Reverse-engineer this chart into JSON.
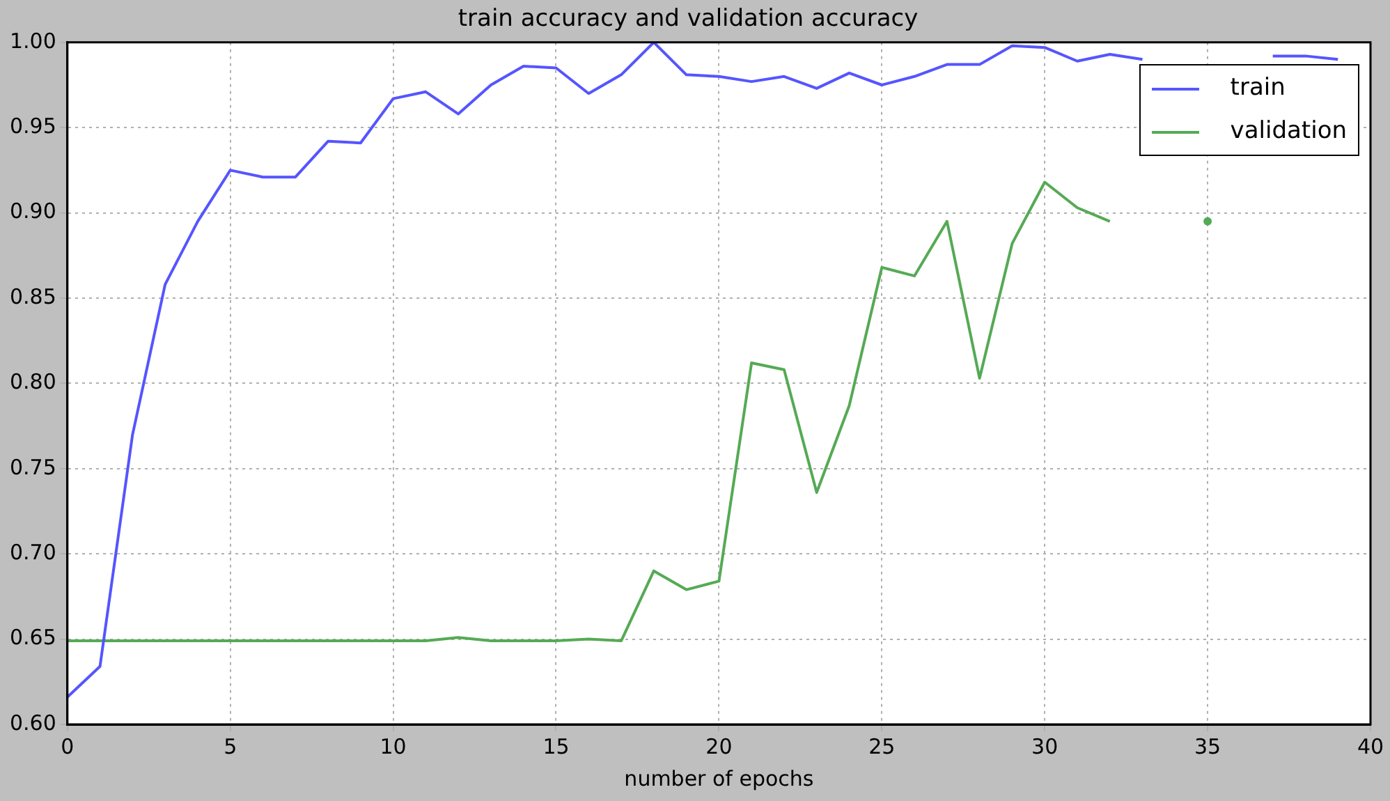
{
  "chart_data": {
    "type": "line",
    "title": "train accuracy and validation accuracy",
    "xlabel": "number of epochs",
    "x": [
      0,
      1,
      2,
      3,
      4,
      5,
      6,
      7,
      8,
      9,
      10,
      11,
      12,
      13,
      14,
      15,
      16,
      17,
      18,
      19,
      20,
      21,
      22,
      23,
      24,
      25,
      26,
      27,
      28,
      29,
      30,
      31,
      32,
      33,
      34,
      35,
      36,
      37,
      38,
      39
    ],
    "series": [
      {
        "name": "train",
        "color": "#5555ff",
        "values": [
          0.616,
          0.634,
          0.77,
          0.858,
          0.895,
          0.925,
          0.921,
          0.921,
          0.942,
          0.941,
          0.967,
          0.971,
          0.958,
          0.975,
          0.986,
          0.985,
          0.97,
          0.981,
          1.0,
          0.981,
          0.98,
          0.977,
          0.98,
          0.973,
          0.982,
          0.975,
          0.98,
          0.987,
          0.987,
          0.998,
          0.997,
          0.989,
          0.993,
          0.99,
          null,
          null,
          null,
          0.992,
          0.992,
          0.99
        ]
      },
      {
        "name": "validation",
        "color": "#55aa55",
        "values": [
          0.649,
          0.649,
          0.649,
          0.649,
          0.649,
          0.649,
          0.649,
          0.649,
          0.649,
          0.649,
          0.649,
          0.649,
          0.651,
          0.649,
          0.649,
          0.649,
          0.65,
          0.649,
          0.69,
          0.679,
          0.684,
          0.812,
          0.808,
          0.736,
          0.787,
          0.868,
          0.863,
          0.895,
          0.803,
          0.882,
          0.918,
          0.903,
          0.895,
          null,
          null,
          0.895,
          null,
          null,
          null,
          null
        ]
      }
    ],
    "xlim": [
      0,
      40
    ],
    "xticks": [
      0,
      5,
      10,
      15,
      20,
      25,
      30,
      35,
      40
    ],
    "ylim": [
      0.6,
      1.0
    ],
    "yticks": [
      {
        "value": 0.6,
        "label": "0.60"
      },
      {
        "value": 0.65,
        "label": "0.65"
      },
      {
        "value": 0.7,
        "label": "0.70"
      },
      {
        "value": 0.75,
        "label": "0.75"
      },
      {
        "value": 0.8,
        "label": "0.80"
      },
      {
        "value": 0.85,
        "label": "0.85"
      },
      {
        "value": 0.9,
        "label": "0.90"
      },
      {
        "value": 0.95,
        "label": "0.95"
      },
      {
        "value": 1.0,
        "label": "1.00"
      }
    ],
    "grid": true,
    "legend": "top right",
    "line_style": "solid",
    "marker": "none"
  }
}
